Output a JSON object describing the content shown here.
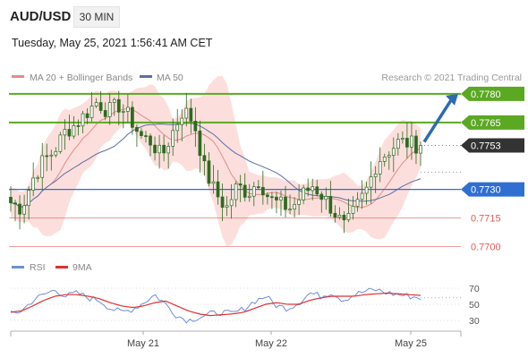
{
  "header": {
    "symbol": "AUD/USD",
    "interval": "30 MIN",
    "datetime": "Tuesday, May 25, 2021 1:56:41 AM CET"
  },
  "legend": {
    "ma20_label": "MA 20 + Bollinger Bands",
    "ma50_label": "MA 50",
    "credit": "Research © 2021 Trading Central",
    "rsi_label": "RSI",
    "ma9_label": "9MA"
  },
  "colors": {
    "resistance": "#5ba823",
    "support_main": "#2f6fd1",
    "support_minor": "#e25b5b",
    "last_price": "#333333",
    "candle": "#2d6a1f",
    "bollinger_fill": "#fbd9d6",
    "ma20": "#e48b86",
    "ma50": "#5a6fa6",
    "rsi": "#6f8fd6",
    "rsi_ma": "#e03030",
    "arrow": "#2d6bb0"
  },
  "chart_data": [
    {
      "type": "line",
      "title": "AUD/USD 30 MIN",
      "x_ticks": [
        "May 21",
        "May 22",
        "May 25"
      ],
      "ylim": [
        0.7697,
        0.7787
      ],
      "levels": [
        {
          "label": "0.7780",
          "value": 0.778,
          "kind": "resistance"
        },
        {
          "label": "0.7765",
          "value": 0.7765,
          "kind": "resistance"
        },
        {
          "label": "0.7753",
          "value": 0.7753,
          "kind": "last"
        },
        {
          "label": "0.7730",
          "value": 0.773,
          "kind": "support"
        },
        {
          "label": "0.7715",
          "value": 0.7715,
          "kind": "support-minor"
        },
        {
          "label": "0.7700",
          "value": 0.77,
          "kind": "support-minor"
        }
      ],
      "series": [
        {
          "name": "MA 20 + Bollinger Bands"
        },
        {
          "name": "MA 50"
        }
      ],
      "price_path": [
        0.7723,
        0.772,
        0.7735,
        0.7745,
        0.775,
        0.776,
        0.7764,
        0.777,
        0.7776,
        0.7771,
        0.7774,
        0.7768,
        0.7758,
        0.7755,
        0.7747,
        0.776,
        0.7772,
        0.7765,
        0.774,
        0.7728,
        0.772,
        0.7732,
        0.7728,
        0.7735,
        0.7725,
        0.7722,
        0.772,
        0.7727,
        0.7732,
        0.7726,
        0.7718,
        0.771,
        0.772,
        0.773,
        0.7745,
        0.775,
        0.7755,
        0.7754,
        0.7753
      ],
      "forecast_target": 0.778
    },
    {
      "type": "line",
      "title": "RSI",
      "ylim": [
        20,
        80
      ],
      "y_ticks": [
        70,
        50,
        30
      ],
      "series": [
        {
          "name": "RSI",
          "values": [
            38,
            42,
            55,
            62,
            68,
            60,
            64,
            58,
            55,
            45,
            40,
            44,
            52,
            62,
            50,
            36,
            30,
            34,
            38,
            40,
            38,
            44,
            54,
            60,
            48,
            45,
            52,
            64,
            60,
            65,
            55,
            62,
            66,
            68,
            64,
            62,
            60,
            58
          ]
        },
        {
          "name": "9MA",
          "values": [
            40,
            42,
            48,
            55,
            60,
            62,
            62,
            60,
            57,
            52,
            48,
            46,
            48,
            52,
            54,
            48,
            42,
            38,
            36,
            37,
            38,
            40,
            45,
            50,
            52,
            50,
            50,
            55,
            58,
            60,
            60,
            60,
            62,
            63,
            64,
            63,
            62,
            61
          ]
        }
      ]
    }
  ]
}
